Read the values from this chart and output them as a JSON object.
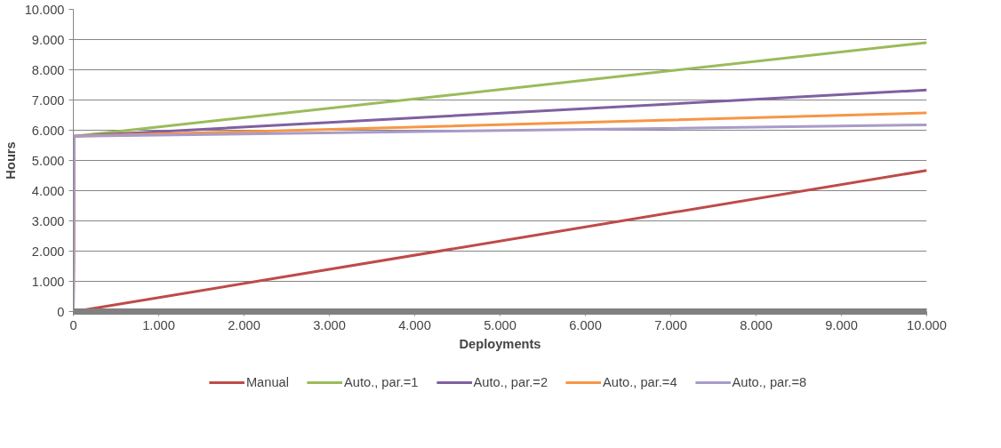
{
  "chart_data": {
    "type": "line",
    "xlabel": "Deployments",
    "ylabel": "Hours",
    "x": [
      0,
      10,
      10000
    ],
    "series": [
      {
        "name": "Manual",
        "color": "#be4b48",
        "values": [
          0,
          0,
          4670
        ]
      },
      {
        "name": "Auto., par.=1",
        "color": "#9bbb59",
        "values": [
          0,
          5800,
          8900
        ]
      },
      {
        "name": "Auto., par.=2",
        "color": "#7f60a1",
        "values": [
          0,
          5800,
          7330
        ]
      },
      {
        "name": "Auto., par.=4",
        "color": "#f79646",
        "values": [
          0,
          5800,
          6570
        ]
      },
      {
        "name": "Auto., par.=8",
        "color": "#a99bc8",
        "values": [
          0,
          5800,
          6180
        ]
      }
    ],
    "xlim": [
      0,
      10000
    ],
    "xticks": [
      0,
      {
        "value": 1000,
        "label": "1.000"
      },
      {
        "value": 2000,
        "label": "2.000"
      },
      {
        "value": 3000,
        "label": "3.000"
      },
      {
        "value": 4000,
        "label": "4.000"
      },
      {
        "value": 5000,
        "label": "5.000"
      },
      {
        "value": 6000,
        "label": "6.000"
      },
      {
        "value": 7000,
        "label": "7.000"
      },
      {
        "value": 8000,
        "label": "8.000"
      },
      {
        "value": 9000,
        "label": "9.000"
      },
      {
        "value": 10000,
        "label": "10.000"
      }
    ],
    "ylim": [
      0,
      10000
    ],
    "yticks": [
      0,
      {
        "value": 1000,
        "label": "1.000"
      },
      {
        "value": 2000,
        "label": "2.000"
      },
      {
        "value": 3000,
        "label": "3.000"
      },
      {
        "value": 4000,
        "label": "4.000"
      },
      {
        "value": 5000,
        "label": "5.000"
      },
      {
        "value": 6000,
        "label": "6.000"
      },
      {
        "value": 7000,
        "label": "7.000"
      },
      {
        "value": 8000,
        "label": "8.000"
      },
      {
        "value": 9000,
        "label": "9.000"
      },
      {
        "value": 10000,
        "label": "10.000"
      }
    ],
    "grid": "y",
    "legend": "bottom",
    "marker": "none",
    "line_style": "solid"
  }
}
